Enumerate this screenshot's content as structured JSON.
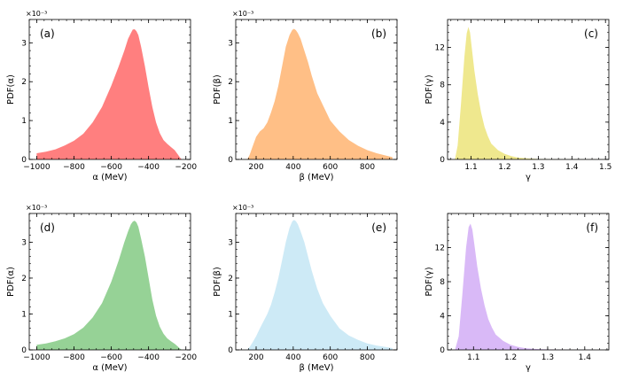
{
  "chart_data": [
    {
      "type": "area",
      "panel_label": "(a)",
      "xlabel": "α (MeV)",
      "ylabel": "PDF(α)",
      "y_multiplier": "×10⁻³",
      "color": "#ff7f7f",
      "xlim": [
        -1040,
        -175
      ],
      "ylim": [
        0,
        0.0036
      ],
      "xticks": [
        -1000,
        -800,
        -600,
        -400,
        -200
      ],
      "xtick_labels": [
        "−1000",
        "−800",
        "−600",
        "−400",
        "−200"
      ],
      "yticks": [
        0,
        0.001,
        0.002,
        0.003
      ],
      "ytick_labels": [
        "0",
        "1",
        "2",
        "3"
      ],
      "x": [
        -1000,
        -950,
        -900,
        -850,
        -800,
        -750,
        -700,
        -650,
        -600,
        -560,
        -530,
        -510,
        -495,
        -485,
        -475,
        -465,
        -455,
        -440,
        -420,
        -400,
        -380,
        -360,
        -340,
        -320,
        -300,
        -280,
        -260,
        -245,
        -230,
        -222
      ],
      "y": [
        0.00016,
        0.0002,
        0.00026,
        0.00036,
        0.00048,
        0.00066,
        0.00095,
        0.00135,
        0.0019,
        0.0024,
        0.0028,
        0.0031,
        0.00325,
        0.00334,
        0.00335,
        0.0033,
        0.0032,
        0.0029,
        0.0024,
        0.00185,
        0.00135,
        0.00095,
        0.00068,
        0.0005,
        0.0004,
        0.00032,
        0.00024,
        0.00014,
        4e-05,
        0.0
      ]
    },
    {
      "type": "area",
      "panel_label": "(b)",
      "xlabel": "β (MeV)",
      "ylabel": "PDF(β)",
      "y_multiplier": "×10⁻³",
      "color": "#ffbf86",
      "xlim": [
        90,
        960
      ],
      "ylim": [
        0,
        0.0036
      ],
      "xticks": [
        200,
        400,
        600,
        800
      ],
      "xtick_labels": [
        "200",
        "400",
        "600",
        "800"
      ],
      "yticks": [
        0,
        0.001,
        0.002,
        0.003
      ],
      "ytick_labels": [
        "0",
        "1",
        "2",
        "3"
      ],
      "x": [
        152,
        165,
        180,
        200,
        220,
        240,
        260,
        280,
        300,
        320,
        340,
        360,
        380,
        395,
        405,
        415,
        425,
        440,
        460,
        480,
        500,
        530,
        560,
        600,
        650,
        700,
        750,
        800,
        850,
        900,
        935
      ],
      "y": [
        0.0,
        0.00012,
        0.00032,
        0.00058,
        0.00072,
        0.0008,
        0.00095,
        0.0012,
        0.0015,
        0.0019,
        0.0024,
        0.0029,
        0.0032,
        0.00333,
        0.00336,
        0.00332,
        0.00325,
        0.0031,
        0.0028,
        0.0025,
        0.00215,
        0.0017,
        0.0014,
        0.001,
        0.00072,
        0.0005,
        0.00035,
        0.00024,
        0.00016,
        0.0001,
        6e-05
      ]
    },
    {
      "type": "area",
      "panel_label": "(c)",
      "xlabel": "γ",
      "ylabel": "PDF(γ)",
      "y_multiplier": "",
      "color": "#efe88e",
      "xlim": [
        1.03,
        1.51
      ],
      "ylim": [
        0,
        15
      ],
      "xticks": [
        1.1,
        1.2,
        1.3,
        1.4,
        1.5
      ],
      "xtick_labels": [
        "1.1",
        "1.2",
        "1.3",
        "1.4",
        "1.5"
      ],
      "yticks": [
        0,
        4,
        8,
        12
      ],
      "ytick_labels": [
        "0",
        "4",
        "8",
        "12"
      ],
      "x": [
        1.052,
        1.06,
        1.07,
        1.08,
        1.087,
        1.092,
        1.097,
        1.102,
        1.11,
        1.12,
        1.13,
        1.14,
        1.15,
        1.16,
        1.18,
        1.2,
        1.22,
        1.24,
        1.27,
        1.3,
        1.35,
        1.4,
        1.45,
        1.5
      ],
      "y": [
        0.0,
        1.5,
        6.0,
        11.0,
        13.5,
        14.2,
        13.6,
        12.0,
        9.5,
        7.0,
        5.0,
        3.5,
        2.5,
        1.7,
        1.0,
        0.6,
        0.35,
        0.2,
        0.1,
        0.05,
        0.03,
        0.02,
        0.01,
        0.0
      ]
    },
    {
      "type": "area",
      "panel_label": "(d)",
      "xlabel": "α (MeV)",
      "ylabel": "PDF(α)",
      "y_multiplier": "×10⁻³",
      "color": "#96d296",
      "xlim": [
        -1040,
        -175
      ],
      "ylim": [
        0,
        0.0038
      ],
      "xticks": [
        -1000,
        -800,
        -600,
        -400,
        -200
      ],
      "xtick_labels": [
        "−1000",
        "−800",
        "−600",
        "−400",
        "−200"
      ],
      "yticks": [
        0,
        0.001,
        0.002,
        0.003
      ],
      "ytick_labels": [
        "0",
        "1",
        "2",
        "3"
      ],
      "x": [
        -1000,
        -950,
        -900,
        -850,
        -800,
        -750,
        -700,
        -650,
        -600,
        -560,
        -530,
        -510,
        -495,
        -485,
        -475,
        -465,
        -455,
        -440,
        -420,
        -400,
        -380,
        -360,
        -340,
        -320,
        -300,
        -280,
        -260,
        -245,
        -230,
        -222
      ],
      "y": [
        0.00014,
        0.00018,
        0.00024,
        0.00032,
        0.00044,
        0.00062,
        0.0009,
        0.0013,
        0.0019,
        0.0025,
        0.003,
        0.0033,
        0.0035,
        0.00357,
        0.0036,
        0.00355,
        0.00343,
        0.0031,
        0.0026,
        0.002,
        0.0014,
        0.00095,
        0.00065,
        0.00045,
        0.00032,
        0.00024,
        0.00017,
        0.0001,
        3e-05,
        0.0
      ]
    },
    {
      "type": "area",
      "panel_label": "(e)",
      "xlabel": "β (MeV)",
      "ylabel": "PDF(β)",
      "y_multiplier": "×10⁻³",
      "color": "#cdeaf6",
      "xlim": [
        90,
        960
      ],
      "ylim": [
        0,
        0.0038
      ],
      "xticks": [
        200,
        400,
        600,
        800
      ],
      "xtick_labels": [
        "200",
        "400",
        "600",
        "800"
      ],
      "yticks": [
        0,
        0.001,
        0.002,
        0.003
      ],
      "ytick_labels": [
        "0",
        "1",
        "2",
        "3"
      ],
      "x": [
        150,
        165,
        180,
        200,
        220,
        240,
        260,
        280,
        300,
        320,
        340,
        360,
        380,
        395,
        405,
        415,
        425,
        440,
        460,
        480,
        500,
        530,
        560,
        600,
        650,
        700,
        750,
        800,
        850,
        900,
        935
      ],
      "y": [
        0.0,
        8e-05,
        0.0002,
        0.00038,
        0.0006,
        0.0008,
        0.001,
        0.00125,
        0.0016,
        0.002,
        0.0025,
        0.003,
        0.0034,
        0.00358,
        0.00362,
        0.00358,
        0.0035,
        0.0033,
        0.003,
        0.0026,
        0.0022,
        0.0017,
        0.0013,
        0.00095,
        0.0006,
        0.0004,
        0.00028,
        0.00018,
        0.00012,
        8e-05,
        5e-05
      ]
    },
    {
      "type": "area",
      "panel_label": "(f)",
      "xlabel": "γ",
      "ylabel": "PDF(γ)",
      "y_multiplier": "",
      "color": "#d9b9f7",
      "xlim": [
        1.03,
        1.465
      ],
      "ylim": [
        0,
        16
      ],
      "xticks": [
        1.1,
        1.2,
        1.3,
        1.4
      ],
      "xtick_labels": [
        "1.1",
        "1.2",
        "1.3",
        "1.4"
      ],
      "yticks": [
        0,
        4,
        8,
        12
      ],
      "ytick_labels": [
        "0",
        "4",
        "8",
        "12"
      ],
      "x": [
        1.05,
        1.06,
        1.07,
        1.08,
        1.087,
        1.092,
        1.097,
        1.102,
        1.11,
        1.12,
        1.13,
        1.14,
        1.15,
        1.16,
        1.18,
        1.2,
        1.22,
        1.24,
        1.27,
        1.3,
        1.35,
        1.4,
        1.45
      ],
      "y": [
        0.0,
        1.6,
        6.5,
        12.0,
        14.4,
        14.8,
        14.1,
        12.5,
        9.8,
        7.2,
        5.2,
        3.6,
        2.6,
        1.8,
        1.05,
        0.6,
        0.35,
        0.2,
        0.1,
        0.05,
        0.03,
        0.02,
        0.0
      ]
    }
  ]
}
